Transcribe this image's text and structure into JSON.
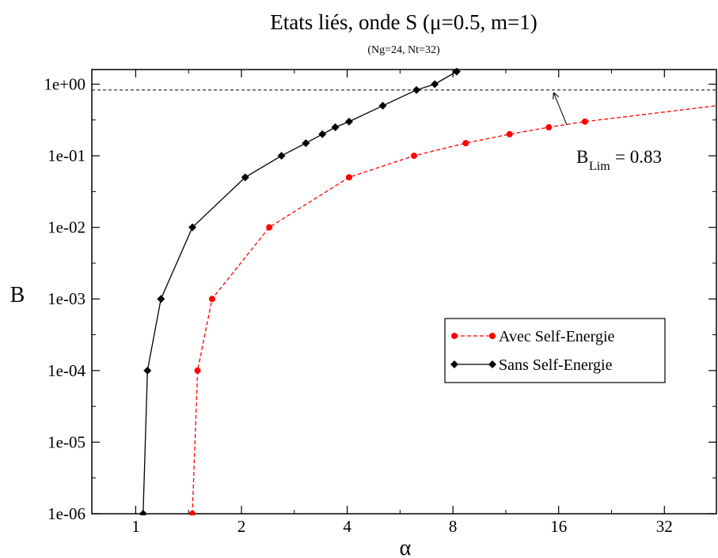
{
  "chart_data": {
    "type": "line",
    "title": "Etats liés, onde S (μ=0.5, m=1)",
    "subtitle": "(Ng=24, Nt=32)",
    "xlabel": "α",
    "ylabel": "B",
    "x_scale": "log2",
    "y_scale": "log10",
    "xlim": [
      0.75,
      45
    ],
    "ylim": [
      1e-06,
      1.6
    ],
    "x_ticks": [
      1,
      2,
      4,
      8,
      16,
      32
    ],
    "x_tick_labels": [
      "1",
      "2",
      "4",
      "8",
      "16",
      "32"
    ],
    "y_ticks": [
      1e-06,
      1e-05,
      0.0001,
      0.001,
      0.01,
      0.1,
      1
    ],
    "y_tick_labels": [
      "1e-06",
      "1e-05",
      "1e-04",
      "1e-03",
      "1e-02",
      "1e-01",
      "1e+00"
    ],
    "grid": false,
    "legend_position": "center-right",
    "series": [
      {
        "name": "Avec Self-Energie",
        "color": "#ff0000",
        "line_style": "dashed",
        "marker": "circle",
        "x": [
          1.45,
          1.5,
          1.65,
          2.4,
          4.05,
          6.2,
          8.7,
          11.6,
          15.0,
          19.0,
          45.0
        ],
        "y": [
          1e-06,
          0.0001,
          0.001,
          0.01,
          0.05,
          0.1,
          0.15,
          0.2,
          0.25,
          0.3,
          0.5
        ]
      },
      {
        "name": "Sans Self-Energie",
        "color": "#000000",
        "line_style": "solid",
        "marker": "diamond",
        "x": [
          1.05,
          1.08,
          1.18,
          1.45,
          2.05,
          2.6,
          3.05,
          3.4,
          3.7,
          4.05,
          5.05,
          6.3,
          7.1,
          8.2
        ],
        "y": [
          1e-06,
          0.0001,
          0.001,
          0.01,
          0.05,
          0.1,
          0.15,
          0.2,
          0.25,
          0.3,
          0.5,
          0.83,
          1.0,
          1.5
        ]
      }
    ],
    "reference_line": {
      "y": 0.83,
      "style": "dashed",
      "color": "#000000"
    },
    "annotation": {
      "main": "B",
      "sub": "Lim",
      "value": "= 0.83",
      "arrow_to": {
        "x": 15.5,
        "y": 0.83
      },
      "text_at": {
        "x": 21,
        "y": 0.1
      }
    }
  }
}
